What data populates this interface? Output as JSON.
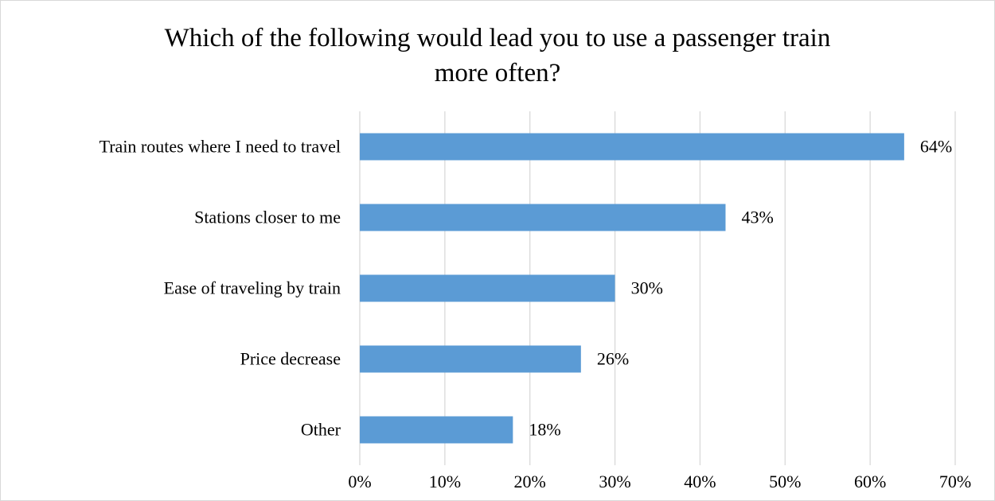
{
  "chart_data": {
    "type": "bar",
    "orientation": "horizontal",
    "title_lines": [
      "Which of the following would lead you to use a passenger train",
      "more often?"
    ],
    "categories": [
      "Train routes where I need to travel",
      "Stations closer to me",
      "Ease of traveling by train",
      "Price decrease",
      "Other"
    ],
    "values": [
      64,
      43,
      30,
      26,
      18
    ],
    "value_labels": [
      "64%",
      "43%",
      "30%",
      "26%",
      "18%"
    ],
    "x_ticks": [
      0,
      10,
      20,
      30,
      40,
      50,
      60,
      70
    ],
    "x_tick_labels": [
      "0%",
      "10%",
      "20%",
      "30%",
      "40%",
      "50%",
      "60%",
      "70%"
    ],
    "xlim": [
      0,
      70
    ],
    "grid": "vertical",
    "legend": "none",
    "bar_color": "#5b9bd5",
    "grid_color": "#d9d9d9"
  }
}
